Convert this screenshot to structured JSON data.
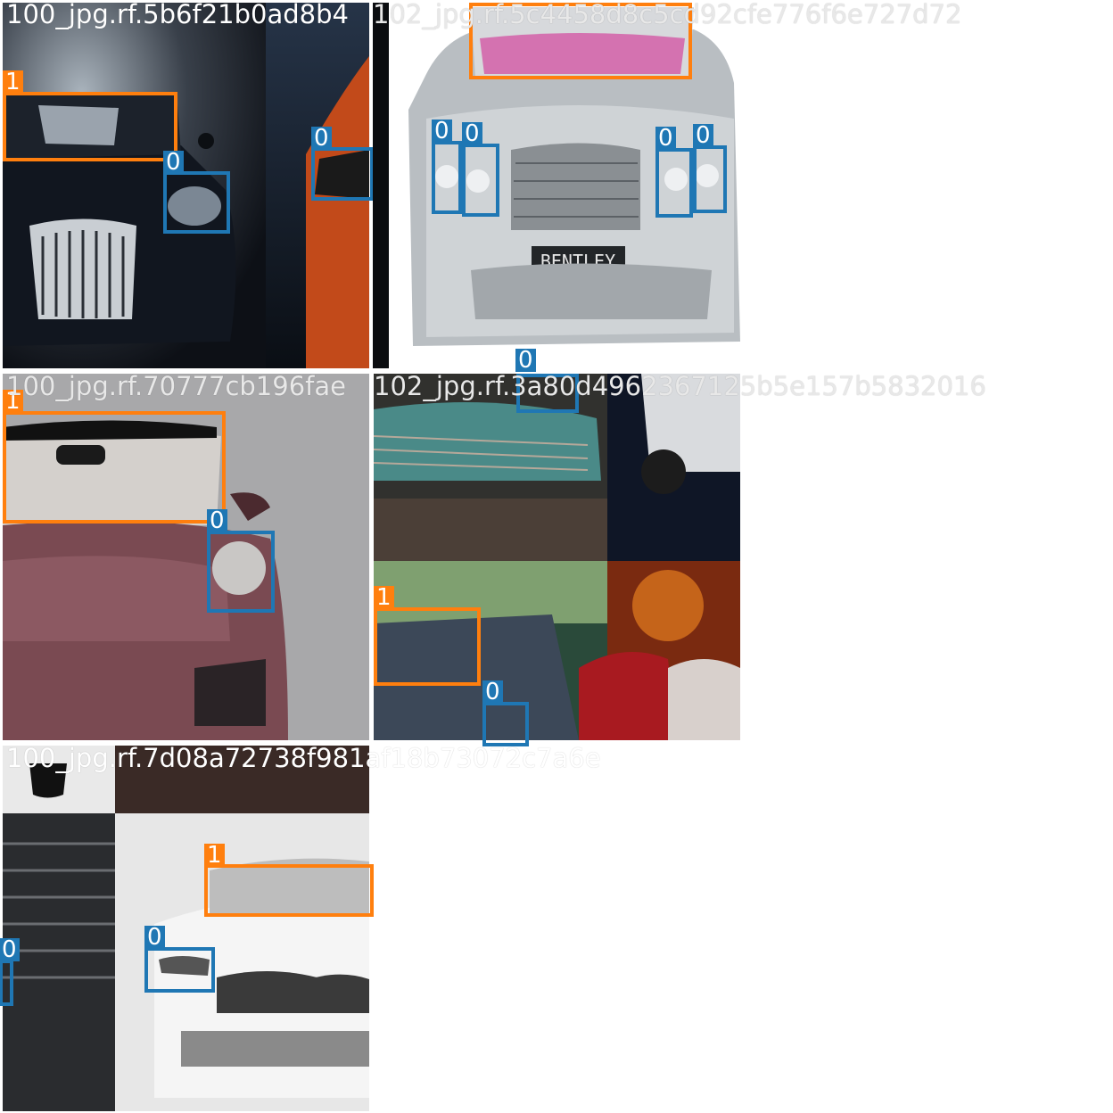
{
  "tiles": [
    {
      "filename": "100_jpg.rf.5b6f21b0ad8b4"
    },
    {
      "filename": "102_jpg.rf.5c4458d8c5cd92cfe776f6e727d72"
    },
    {
      "filename": "100_jpg.rf.70777cb196fae"
    },
    {
      "filename": "102_jpg.rf.3a80d4962367125b5e157b5832016"
    },
    {
      "filename": "100_jpg.rf.7d08a72738f981af18b73072c7a6e"
    }
  ],
  "classes": {
    "c0": "0",
    "c1": "1"
  },
  "plates": {
    "bentley": "BENTLEY"
  },
  "colors": {
    "class0": "#1f77b4",
    "class1": "#ff7f0e"
  }
}
